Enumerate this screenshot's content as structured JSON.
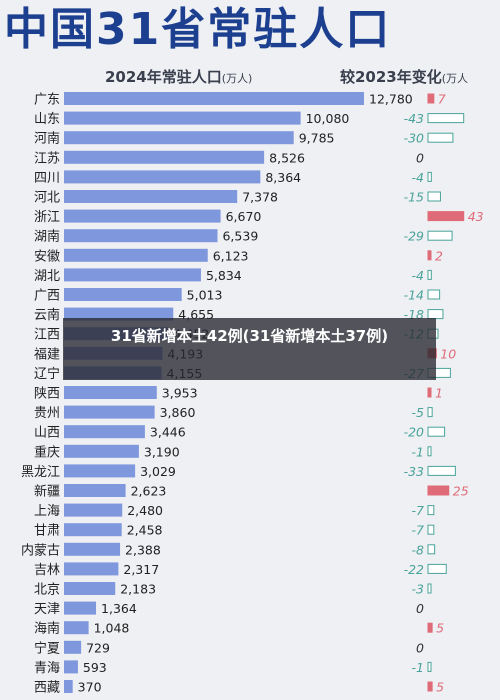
{
  "header": {
    "title": "中国31省常驻人口"
  },
  "subtitles": {
    "left": "2024年常驻人口",
    "left_unit": "(万人)",
    "right": "较2023年变化",
    "right_unit": "(万人"
  },
  "overlay": {
    "text": "31省新增本土42例(31省新增本土37例)"
  },
  "colors": {
    "bar": "#7f97dc",
    "pos_change": "#e06b78",
    "neg_change": "#4aa39a",
    "zero_change": "#333333"
  },
  "chart_data": {
    "type": "bar",
    "orientation": "horizontal",
    "categories": [
      "广东",
      "山东",
      "河南",
      "江苏",
      "四川",
      "河北",
      "浙江",
      "湖南",
      "安徽",
      "湖北",
      "广西",
      "云南",
      "江西",
      "福建",
      "辽宁",
      "陕西",
      "贵州",
      "山西",
      "重庆",
      "黑龙江",
      "新疆",
      "上海",
      "甘肃",
      "内蒙古",
      "吉林",
      "北京",
      "天津",
      "海南",
      "宁夏",
      "青海",
      "西藏"
    ],
    "series": [
      {
        "values": [
          12780,
          10080,
          9785,
          8526,
          8364,
          7378,
          6670,
          6539,
          6123,
          5834,
          5013,
          4655,
          4452,
          4193,
          4155,
          3953,
          3860,
          3446,
          3190,
          3029,
          2623,
          2480,
          2458,
          2388,
          2317,
          2183,
          1364,
          1048,
          729,
          593,
          370
        ],
        "labels": [
          "12,780",
          "10,080",
          "9,785",
          "8,526",
          "8,364",
          "7,378",
          "6,670",
          "6,539",
          "6,123",
          "5,834",
          "5,013",
          "4,655",
          "4,452",
          "4,193",
          "4,155",
          "3,953",
          "3,860",
          "3,446",
          "3,190",
          "3,029",
          "2,623",
          "2,480",
          "2,458",
          "2,388",
          "2,317",
          "2,183",
          "1,364",
          "1,048",
          "729",
          "593",
          "370"
        ]
      },
      {
        "values": [
          7,
          -43,
          -30,
          0,
          -4,
          -15,
          43,
          -29,
          2,
          -4,
          -14,
          -18,
          -12,
          10,
          -27,
          1,
          -5,
          -20,
          -1,
          -33,
          25,
          -7,
          -7,
          -8,
          -22,
          -3,
          0,
          5,
          0,
          -1,
          5
        ],
        "labels": [
          "7",
          "-43",
          "-30",
          "0",
          "-4",
          "-15",
          "43",
          "-29",
          "2",
          "-4",
          "-14",
          "-18",
          "-12",
          "10",
          "-27",
          "1",
          "-5",
          "-20",
          "-1",
          "-33",
          "25",
          "-7",
          "-7",
          "-8",
          "-22",
          "-3",
          "0",
          "5",
          "0",
          "-1",
          "5"
        ]
      }
    ],
    "xlim": [
      0,
      12780
    ]
  }
}
